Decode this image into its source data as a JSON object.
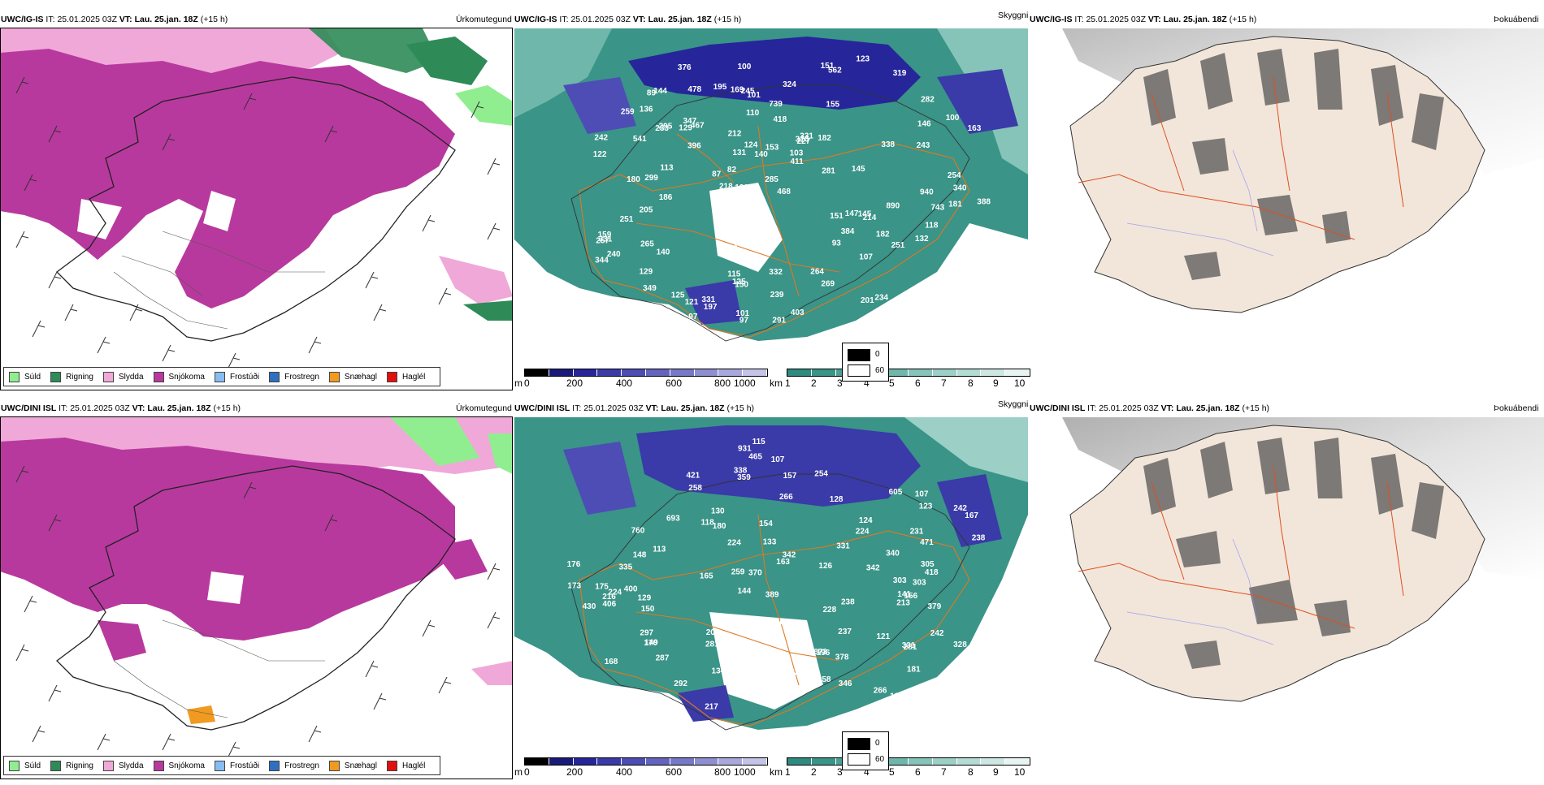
{
  "rows": [
    {
      "model": "UWC/IG-IS",
      "it_label": "IT:",
      "it_value": "25.01.2025 03Z",
      "vt_label": "VT:",
      "vt_value": "Lau. 25.jan. 18Z",
      "lead": "(+15 h)",
      "panel_titles": [
        "Úrkomutegund",
        "Skyggni",
        "Þokuábendi"
      ]
    },
    {
      "model": "UWC/DINI ISL",
      "it_label": "IT:",
      "it_value": "25.01.2025 03Z",
      "vt_label": "VT:",
      "vt_value": "Lau. 25.jan. 18Z",
      "lead": "(+15 h)",
      "panel_titles": [
        "Úrkomutegund",
        "Skyggni",
        "Þokuábendi"
      ]
    }
  ],
  "precip_legend": [
    {
      "label": "Súld",
      "color": "#90ee90"
    },
    {
      "label": "Rigning",
      "color": "#2e8b57"
    },
    {
      "label": "Slydda",
      "color": "#f0a8d8"
    },
    {
      "label": "Snjókoma",
      "color": "#b8399e"
    },
    {
      "label": "Frostúði",
      "color": "#87bdf0"
    },
    {
      "label": "Frostregn",
      "color": "#2f6fc0"
    },
    {
      "label": "Snæhagl",
      "color": "#f09a20"
    },
    {
      "label": "Haglél",
      "color": "#e01010"
    }
  ],
  "ceiling_scale": {
    "unit": "m",
    "ticks": [
      "0",
      "200",
      "400",
      "600",
      "800",
      "1000"
    ],
    "colors": [
      "#000000",
      "#1a1a7a",
      "#26269a",
      "#3a3aa8",
      "#4d4db5",
      "#6464c0",
      "#7878c8",
      "#8e8ed0",
      "#a8a8dc",
      "#c4c4e8"
    ]
  },
  "visibility_scale": {
    "unit": "km",
    "ticks": [
      "1",
      "2",
      "3",
      "4",
      "5",
      "6",
      "7",
      "8",
      "9",
      "10"
    ],
    "colors": [
      "#2f8a80",
      "#3a9488",
      "#4aa094",
      "#5cab9f",
      "#70b7ab",
      "#86c3b9",
      "#9ccfc6",
      "#b4dcd5",
      "#cde8e3",
      "#e8f4f2"
    ]
  },
  "fog_legend": [
    "0",
    "60"
  ],
  "ceiling_labels": [
    [
      "122",
      "218",
      "155",
      "169",
      "418",
      "240",
      "467",
      "349",
      "245",
      "227",
      "214",
      "151",
      "100",
      "82",
      "115",
      "131",
      "144",
      "123",
      "140",
      "115",
      "145",
      "129",
      "541",
      "93",
      "163",
      "103",
      "150",
      "411",
      "344",
      "282",
      "384",
      "269",
      "129",
      "332",
      "113",
      "136",
      "124",
      "134",
      "101",
      "121",
      "147",
      "233",
      "259",
      "388",
      "212",
      "239",
      "153",
      "281",
      "118",
      "101",
      "243",
      "291",
      "234",
      "291",
      "264",
      "340",
      "182",
      "107",
      "140",
      "132",
      "97",
      "151",
      "562",
      "180",
      "254",
      "251",
      "265",
      "125",
      "310",
      "319",
      "396",
      "940",
      "101",
      "87",
      "126",
      "195",
      "257",
      "739",
      "478",
      "145",
      "205",
      "197",
      "338",
      "331",
      "403",
      "295",
      "376",
      "743",
      "182",
      "186",
      "159",
      "181",
      "347",
      "468",
      "242",
      "251",
      "285",
      "331",
      "331",
      "201",
      "125",
      "146",
      "89",
      "97",
      "890",
      "100",
      "110",
      "299",
      "324"
    ],
    [
      "605",
      "313",
      "113",
      "150",
      "149",
      "123",
      "124",
      "175",
      "237",
      "163",
      "181",
      "176",
      "170",
      "217",
      "258",
      "115",
      "338",
      "342",
      "133",
      "134",
      "216",
      "266",
      "238",
      "760",
      "287",
      "784",
      "766",
      "281",
      "406",
      "242",
      "126",
      "128",
      "141",
      "167",
      "107",
      "92",
      "129",
      "173",
      "148",
      "228",
      "142",
      "208",
      "196",
      "180",
      "154",
      "471",
      "165",
      "521",
      "118",
      "331",
      "335",
      "254",
      "259",
      "285",
      "297",
      "331",
      "303",
      "266",
      "213",
      "292",
      "224",
      "400",
      "389",
      "430",
      "370",
      "281",
      "305",
      "258",
      "231",
      "693",
      "224",
      "233",
      "238",
      "418",
      "303",
      "931",
      "342",
      "673",
      "359",
      "421",
      "346",
      "340",
      "379",
      "328",
      "224",
      "242",
      "121",
      "121",
      "378",
      "465",
      "168",
      "157",
      "130",
      "144",
      "107",
      "156"
    ]
  ]
}
